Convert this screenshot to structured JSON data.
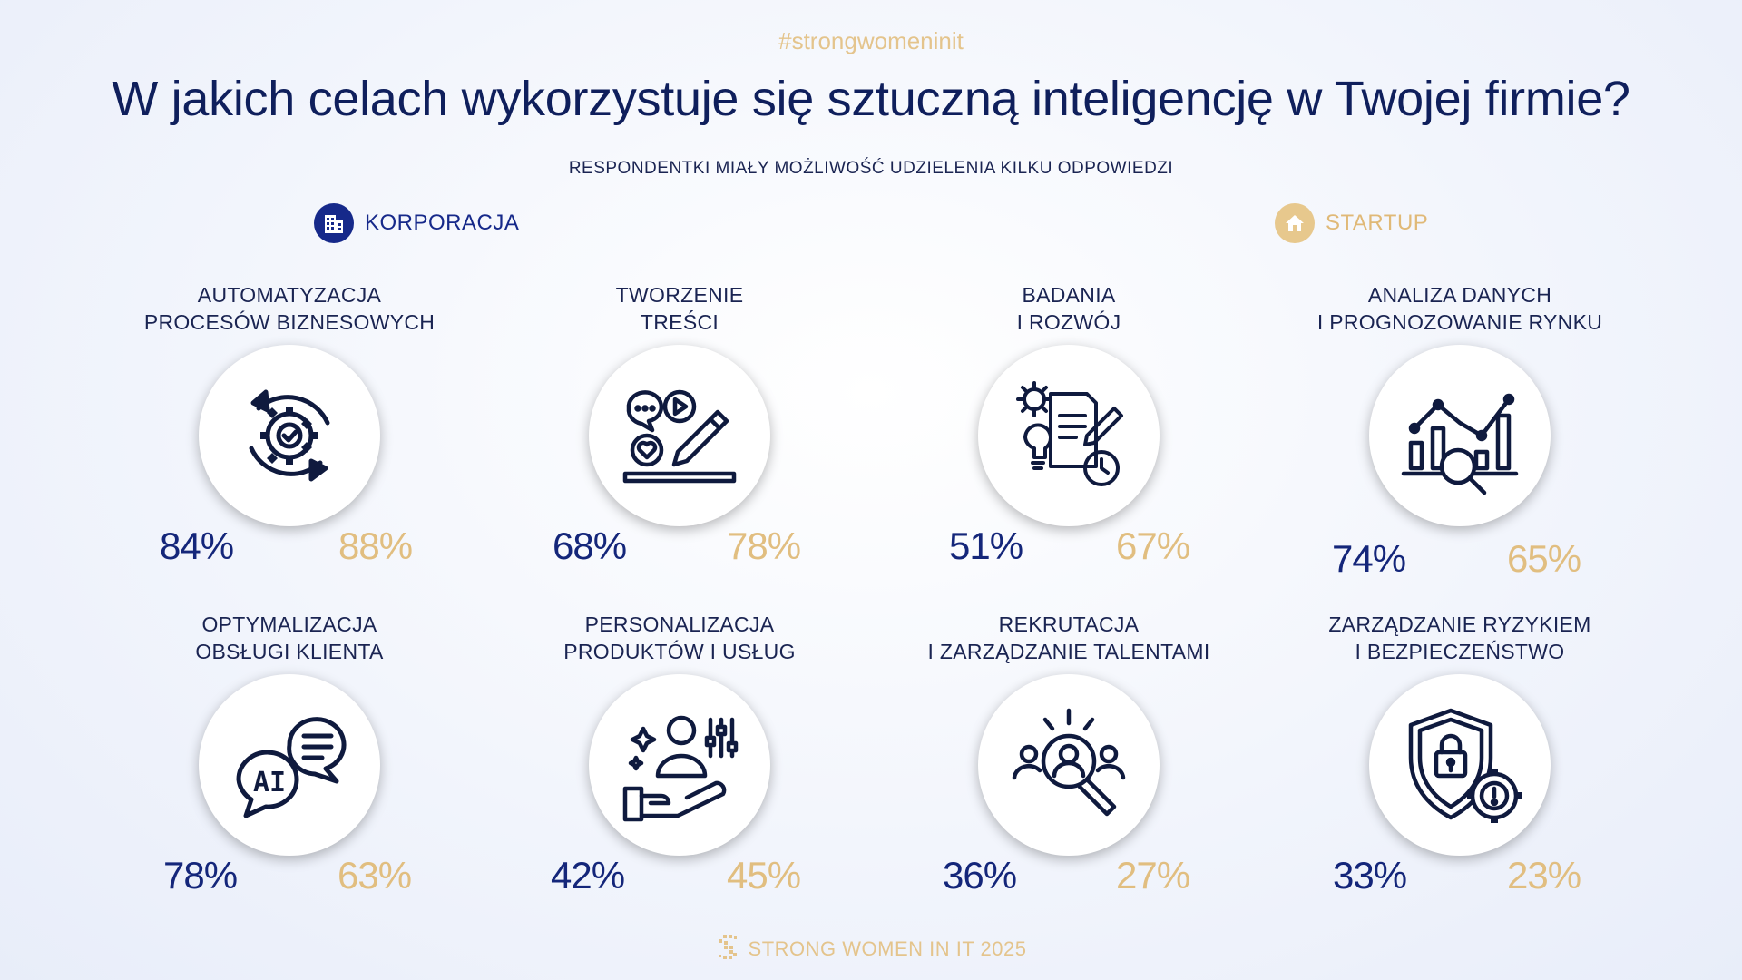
{
  "header": {
    "hashtag": "#strongwomeninit",
    "title": "W jakich celach wykorzystuje się sztuczną inteligencję w Twojej firmie?",
    "subtitle": "RESPONDENTKI MIAŁY MOŻLIWOŚĆ UDZIELENIA KILKU ODPOWIEDZI"
  },
  "legend": {
    "corporation": "KORPORACJA",
    "startup": "STARTUP"
  },
  "colors": {
    "corporation": "#14267a",
    "startup": "#e1be80"
  },
  "footer": {
    "brand": "STRONG WOMEN IN IT 2025"
  },
  "chart_data": {
    "type": "table",
    "title": "W jakich celach wykorzystuje się sztuczną inteligencję w Twojej firmie?",
    "series": [
      {
        "name": "KORPORACJA",
        "values": [
          84,
          68,
          51,
          74,
          78,
          42,
          36,
          33
        ]
      },
      {
        "name": "STARTUP",
        "values": [
          88,
          78,
          67,
          65,
          63,
          45,
          27,
          23
        ]
      }
    ],
    "categories": [
      {
        "line1": "AUTOMATYZACJA",
        "line2": "PROCESÓW BIZNESOWYCH",
        "icon": "gear-cycle-icon",
        "corp": "84%",
        "start": "88%"
      },
      {
        "line1": "TWORZENIE",
        "line2": "TREŚCI",
        "icon": "content-creation-icon",
        "corp": "68%",
        "start": "78%"
      },
      {
        "line1": "BADANIA",
        "line2": "I ROZWÓJ",
        "icon": "research-icon",
        "corp": "51%",
        "start": "67%"
      },
      {
        "line1": "ANALIZA DANYCH",
        "line2": "I PROGNOZOWANIE RYNKU",
        "icon": "analytics-icon",
        "corp": "74%",
        "start": "65%"
      },
      {
        "line1": "OPTYMALIZACJA",
        "line2": "OBSŁUGI KLIENTA",
        "icon": "ai-chat-icon",
        "corp": "78%",
        "start": "63%"
      },
      {
        "line1": "PERSONALIZACJA",
        "line2": "PRODUKTÓW I USŁUG",
        "icon": "personalization-icon",
        "corp": "42%",
        "start": "45%"
      },
      {
        "line1": "REKRUTACJA",
        "line2": "I ZARZĄDZANIE TALENTAMI",
        "icon": "recruitment-icon",
        "corp": "36%",
        "start": "27%"
      },
      {
        "line1": "ZARZĄDZANIE RYZYKIEM",
        "line2": "I BEZPIECZEŃSTWO",
        "icon": "security-shield-icon",
        "corp": "33%",
        "start": "23%"
      }
    ]
  }
}
